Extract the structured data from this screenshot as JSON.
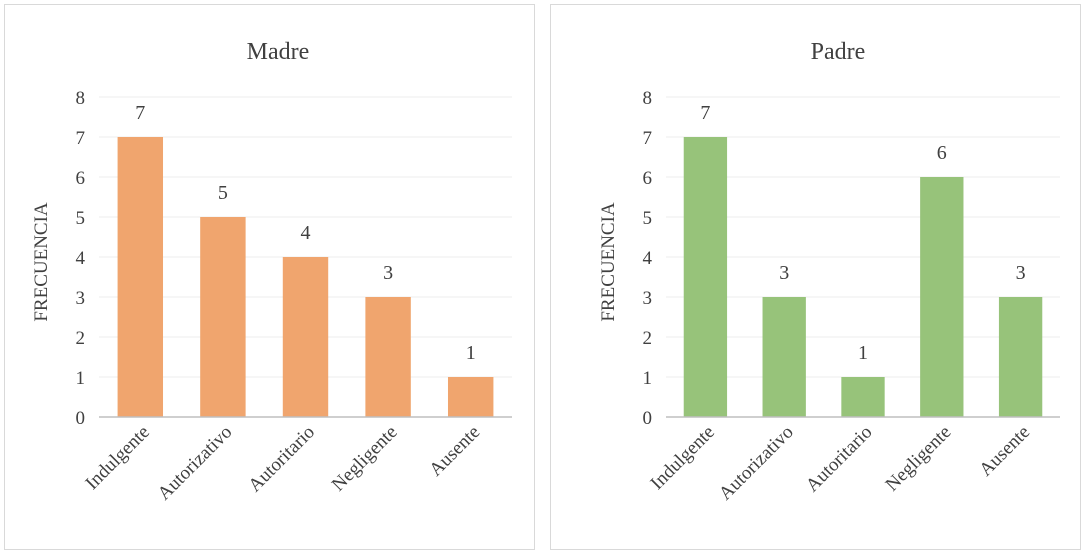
{
  "chart_data": [
    {
      "type": "bar",
      "title": "Madre",
      "xlabel": "",
      "ylabel": "FRECUENCIA",
      "categories": [
        "Indulgente",
        "Autorizativo",
        "Autoritario",
        "Negligente",
        "Ausente"
      ],
      "values": [
        7,
        5,
        4,
        3,
        1
      ],
      "ylim": [
        0,
        8
      ],
      "yticks": [
        "0",
        "1",
        "2",
        "3",
        "4",
        "5",
        "6",
        "7",
        "8"
      ],
      "color": "#f0a56e",
      "grid": true
    },
    {
      "type": "bar",
      "title": "Padre",
      "xlabel": "",
      "ylabel": "FRECUENCIA",
      "categories": [
        "Indulgente",
        "Autorizativo",
        "Autoritario",
        "Negligente",
        "Ausente"
      ],
      "values": [
        7,
        3,
        1,
        6,
        3
      ],
      "ylim": [
        0,
        8
      ],
      "yticks": [
        "0",
        "1",
        "2",
        "3",
        "4",
        "5",
        "6",
        "7",
        "8"
      ],
      "color": "#97c37a",
      "grid": true
    }
  ]
}
